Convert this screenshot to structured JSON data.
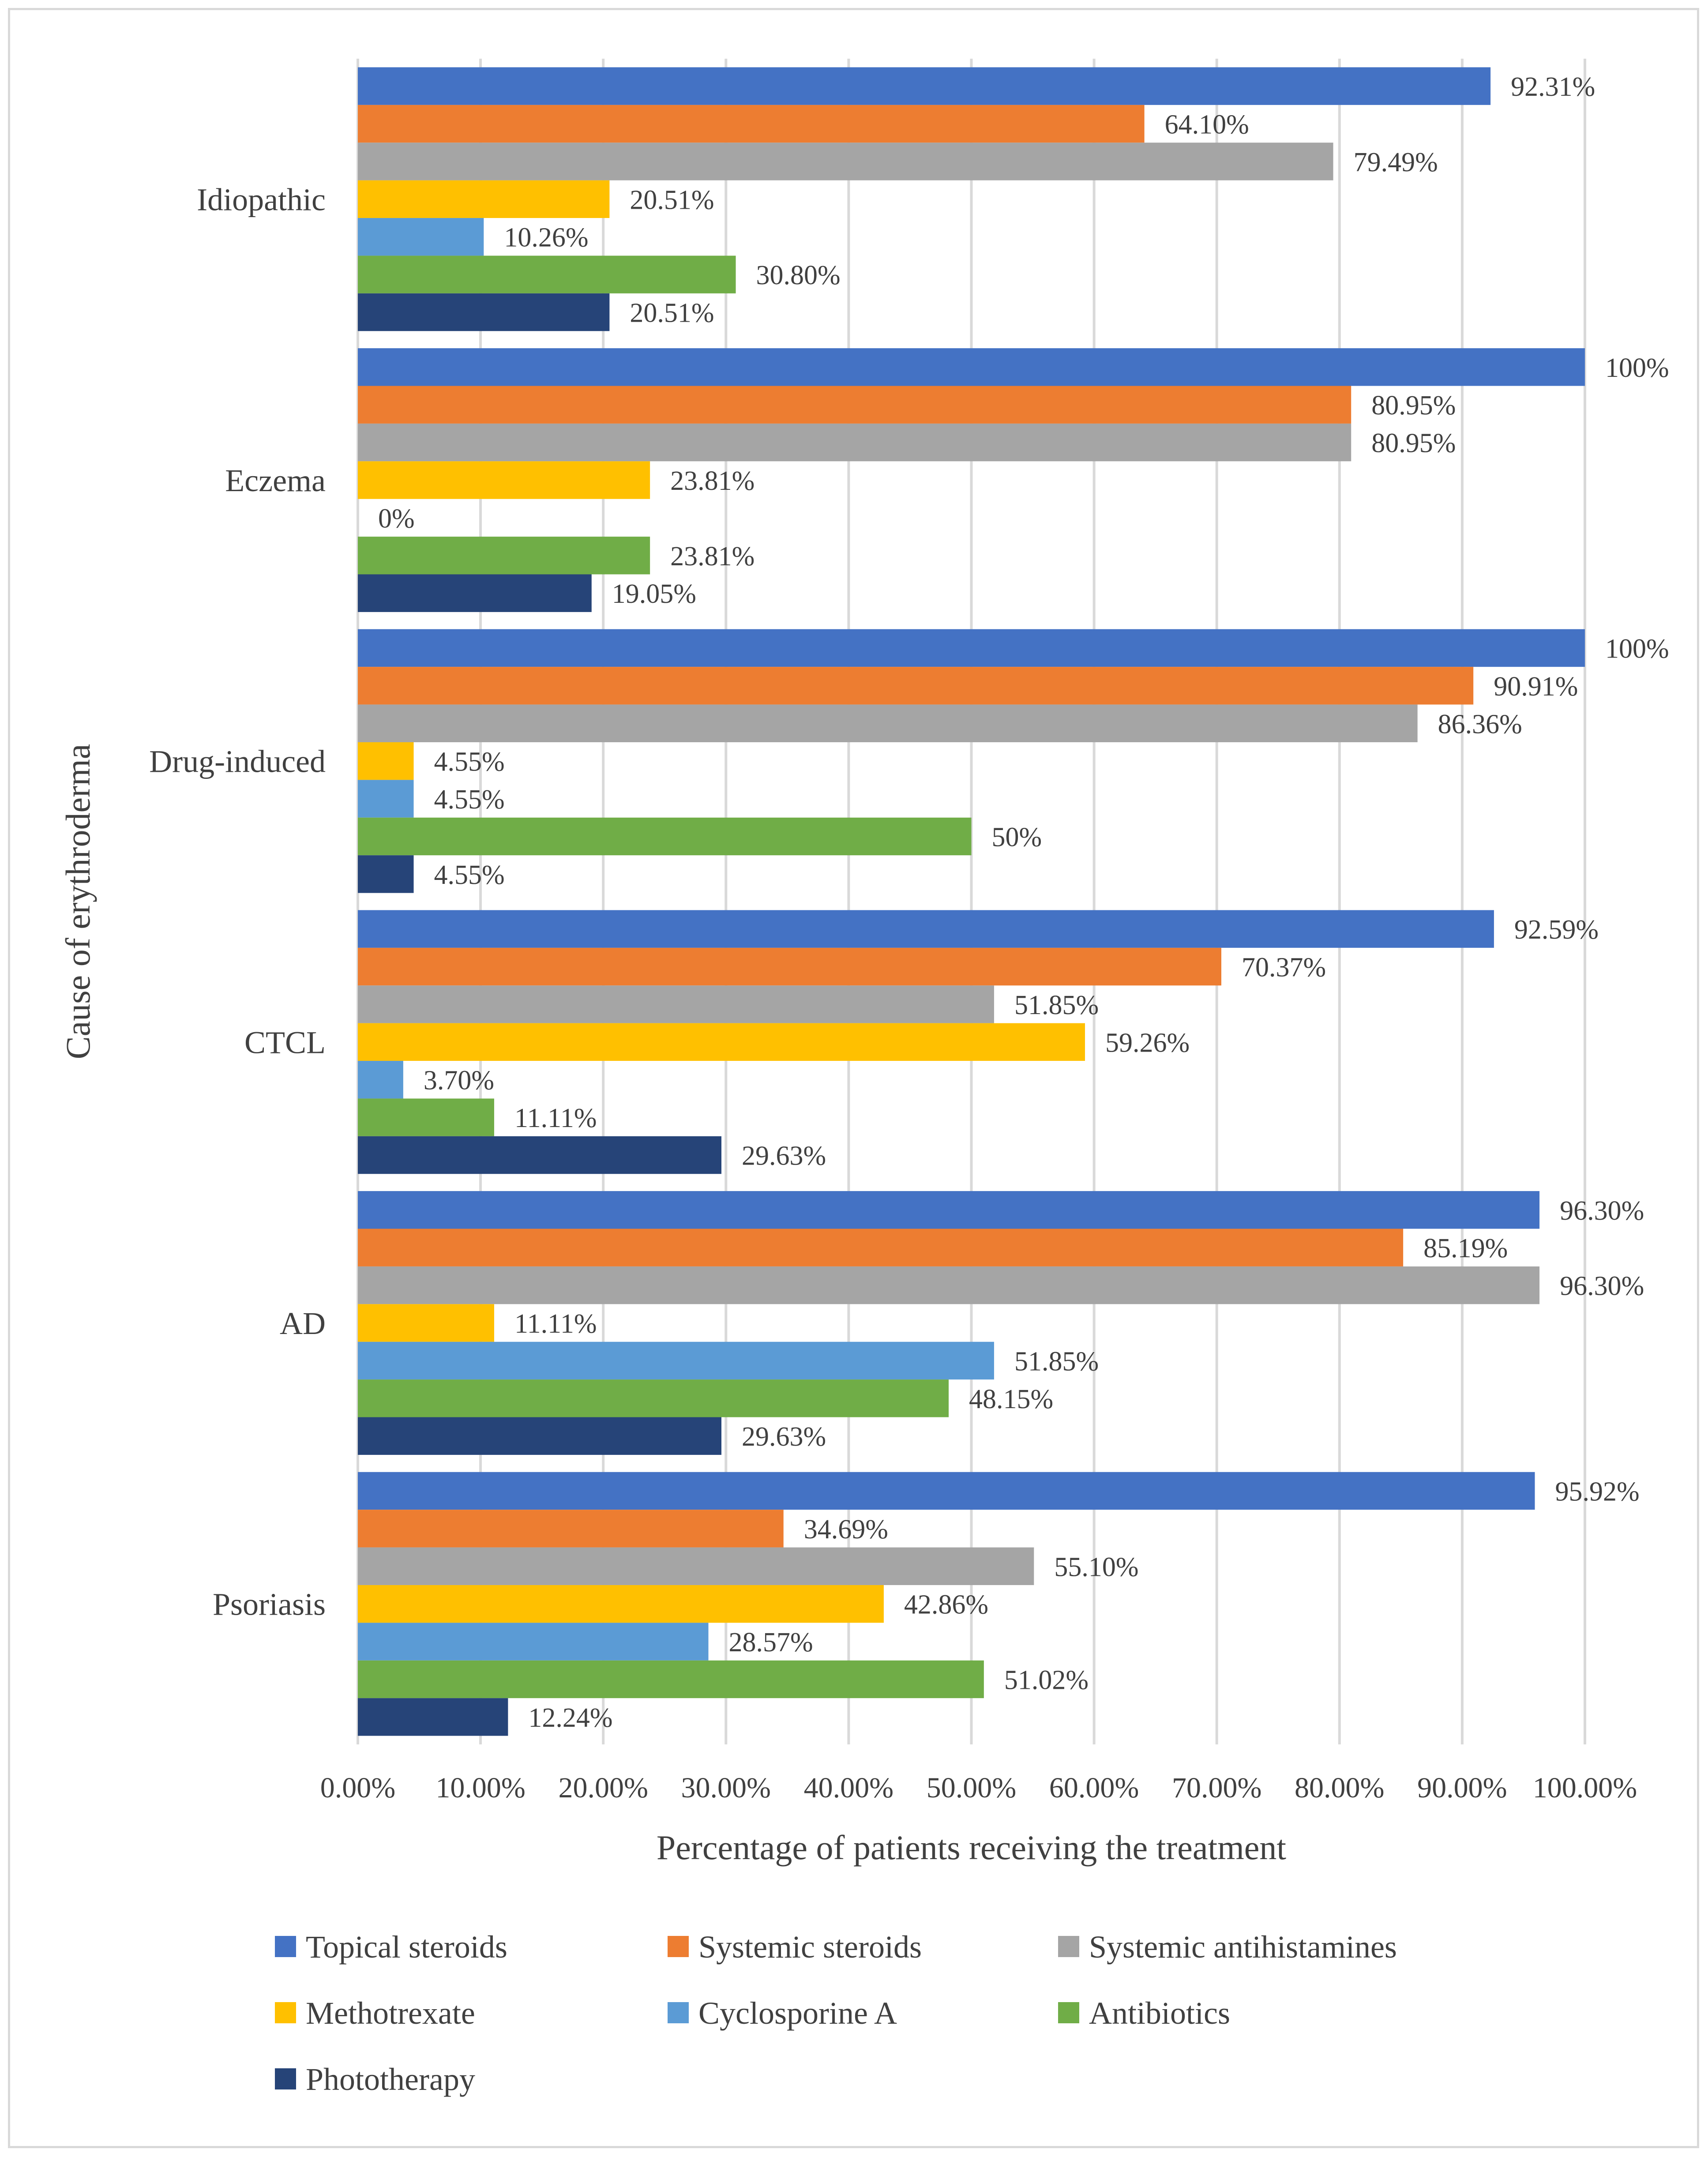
{
  "chart_data": {
    "type": "bar",
    "orientation": "horizontal",
    "xlabel": "Percentage of patients receiving the treatment",
    "ylabel": "Cause of erythroderma",
    "xlim": [
      0,
      100
    ],
    "x_ticks": [
      "0.00%",
      "10.00%",
      "20.00%",
      "30.00%",
      "40.00%",
      "50.00%",
      "60.00%",
      "70.00%",
      "80.00%",
      "90.00%",
      "100.00%"
    ],
    "grid": "vertical",
    "legend_position": "bottom",
    "categories": [
      "Idiopathic",
      "Eczema",
      "Drug-induced",
      "CTCL",
      "AD",
      "Psoriasis"
    ],
    "series": [
      {
        "name": "Topical steroids",
        "color": "#4472C4",
        "values": [
          92.31,
          100,
          100,
          92.59,
          96.3,
          95.92
        ],
        "labels": [
          "92.31%",
          "100%",
          "100%",
          "92.59%",
          "96.30%",
          "95.92%"
        ]
      },
      {
        "name": "Systemic steroids",
        "color": "#ED7D31",
        "values": [
          64.1,
          80.95,
          90.91,
          70.37,
          85.19,
          34.69
        ],
        "labels": [
          "64.10%",
          "80.95%",
          "90.91%",
          "70.37%",
          "85.19%",
          "34.69%"
        ]
      },
      {
        "name": "Systemic antihistamines",
        "color": "#A5A5A5",
        "values": [
          79.49,
          80.95,
          86.36,
          51.85,
          96.3,
          55.1
        ],
        "labels": [
          "79.49%",
          "80.95%",
          "86.36%",
          "51.85%",
          "96.30%",
          "55.10%"
        ]
      },
      {
        "name": "Methotrexate",
        "color": "#FFC000",
        "values": [
          20.51,
          23.81,
          4.55,
          59.26,
          11.11,
          42.86
        ],
        "labels": [
          "20.51%",
          "23.81%",
          "4.55%",
          "59.26%",
          "11.11%",
          "42.86%"
        ]
      },
      {
        "name": "Cyclosporine A",
        "color": "#5B9BD5",
        "values": [
          10.26,
          0,
          4.55,
          3.7,
          51.85,
          28.57
        ],
        "labels": [
          "10.26%",
          "0%",
          "4.55%",
          "3.70%",
          "51.85%",
          "28.57%"
        ]
      },
      {
        "name": "Antibiotics",
        "color": "#70AD47",
        "values": [
          30.8,
          23.81,
          50,
          11.11,
          48.15,
          51.02
        ],
        "labels": [
          "30.80%",
          "23.81%",
          "50%",
          "11.11%",
          "48.15%",
          "51.02%"
        ]
      },
      {
        "name": "Phototherapy",
        "color": "#264478",
        "values": [
          20.51,
          19.05,
          4.55,
          29.63,
          29.63,
          12.24
        ],
        "labels": [
          "20.51%",
          "19.05%",
          "4.55%",
          "29.63%",
          "29.63%",
          "12.24%"
        ]
      }
    ]
  }
}
